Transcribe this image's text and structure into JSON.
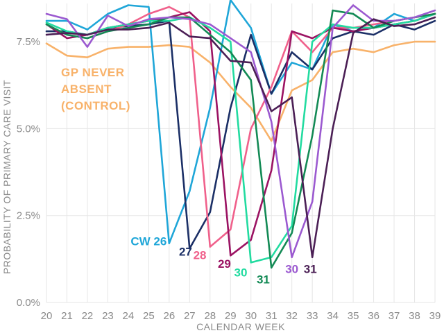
{
  "chart_data": {
    "type": "line",
    "title": "",
    "xlabel": "CALENDAR WEEK",
    "ylabel": "PROBABILITY OF PRIMARY CARE VISIT",
    "x": [
      20,
      21,
      22,
      23,
      24,
      25,
      26,
      27,
      28,
      29,
      30,
      31,
      32,
      33,
      34,
      35,
      36,
      37,
      38,
      39
    ],
    "xlim": [
      20,
      39
    ],
    "ylim": [
      0,
      8.6
    ],
    "yticks": [
      0,
      2.5,
      5.0,
      7.5
    ],
    "ytick_labels": [
      "0.0%",
      "2.5%",
      "5.0%",
      "7.5%"
    ],
    "grid": true,
    "annotation": {
      "lines": [
        "GP NEVER",
        "ABSENT",
        "(CONTROL)"
      ],
      "color": "#f8b26a"
    },
    "series": [
      {
        "name": "GP never absent (control)",
        "label": "",
        "color": "#f8b26a",
        "values": [
          7.45,
          7.1,
          7.05,
          7.3,
          7.35,
          7.35,
          7.4,
          7.35,
          6.9,
          6.2,
          5.6,
          4.65,
          6.1,
          6.4,
          7.2,
          7.3,
          7.2,
          7.4,
          7.5,
          7.5
        ]
      },
      {
        "name": "CW 26",
        "label": "CW 26",
        "color": "#1fa6d8",
        "label_x": 25.0,
        "label_y": 1.65,
        "values": [
          8.1,
          8.1,
          7.85,
          8.3,
          8.55,
          8.5,
          1.7,
          3.2,
          5.6,
          8.7,
          7.9,
          6.0,
          6.9,
          6.7,
          8.0,
          7.8,
          7.9,
          8.3,
          8.1,
          8.3
        ]
      },
      {
        "name": "CW 27",
        "label": "27",
        "color": "#1b2f66",
        "label_x": 26.8,
        "label_y": 1.35,
        "values": [
          7.8,
          7.8,
          7.7,
          7.9,
          7.95,
          8.0,
          8.1,
          1.55,
          2.6,
          5.6,
          7.7,
          6.0,
          7.2,
          6.7,
          7.6,
          7.8,
          7.7,
          8.0,
          7.85,
          8.1
        ]
      },
      {
        "name": "CW 28",
        "label": "28",
        "color": "#f0608b",
        "label_x": 27.5,
        "label_y": 1.25,
        "values": [
          8.0,
          7.7,
          7.6,
          7.8,
          8.0,
          8.3,
          8.5,
          8.2,
          1.6,
          2.1,
          5.0,
          6.2,
          7.8,
          7.2,
          7.9,
          7.9,
          8.0,
          8.1,
          8.2,
          8.3
        ]
      },
      {
        "name": "CW 29",
        "label": "29",
        "color": "#9b1363",
        "label_x": 28.7,
        "label_y": 1.0,
        "values": [
          8.0,
          7.6,
          7.7,
          7.9,
          8.0,
          8.1,
          8.2,
          8.35,
          7.8,
          1.35,
          1.8,
          3.8,
          7.8,
          7.6,
          7.9,
          7.8,
          7.9,
          8.0,
          8.1,
          8.3
        ]
      },
      {
        "name": "CW 30",
        "label": "30",
        "color": "#22dba0",
        "label_x": 29.5,
        "label_y": 0.75,
        "values": [
          8.05,
          7.8,
          7.7,
          7.9,
          8.0,
          8.1,
          8.1,
          8.2,
          7.9,
          7.5,
          1.15,
          1.3,
          2.2,
          7.5,
          8.0,
          7.9,
          7.9,
          8.0,
          8.1,
          8.3
        ]
      },
      {
        "name": "CW 31",
        "label": "31",
        "color": "#138a55",
        "label_x": 30.6,
        "label_y": 0.55,
        "values": [
          8.0,
          7.7,
          7.6,
          7.8,
          7.9,
          8.0,
          8.2,
          8.2,
          7.7,
          7.2,
          6.4,
          1.0,
          2.0,
          4.8,
          8.4,
          8.3,
          7.9,
          8.1,
          8.2,
          8.3
        ]
      },
      {
        "name": "CW 30 (purple)",
        "label": "30",
        "color": "#9b59d0",
        "label_x": 32.0,
        "label_y": 0.85,
        "values": [
          8.3,
          8.15,
          7.35,
          8.25,
          7.95,
          8.15,
          8.2,
          8.15,
          8.0,
          7.6,
          7.2,
          5.2,
          1.3,
          2.9,
          7.9,
          8.55,
          8.1,
          8.1,
          8.2,
          8.4
        ]
      },
      {
        "name": "CW 31 (dark)",
        "label": "31",
        "color": "#4b1f55",
        "label_x": 32.9,
        "label_y": 0.85,
        "values": [
          7.7,
          7.75,
          7.7,
          7.85,
          7.85,
          7.9,
          8.05,
          7.65,
          7.6,
          6.95,
          6.9,
          5.5,
          5.9,
          1.3,
          5.0,
          7.75,
          8.15,
          7.95,
          8.0,
          8.2
        ]
      }
    ]
  }
}
